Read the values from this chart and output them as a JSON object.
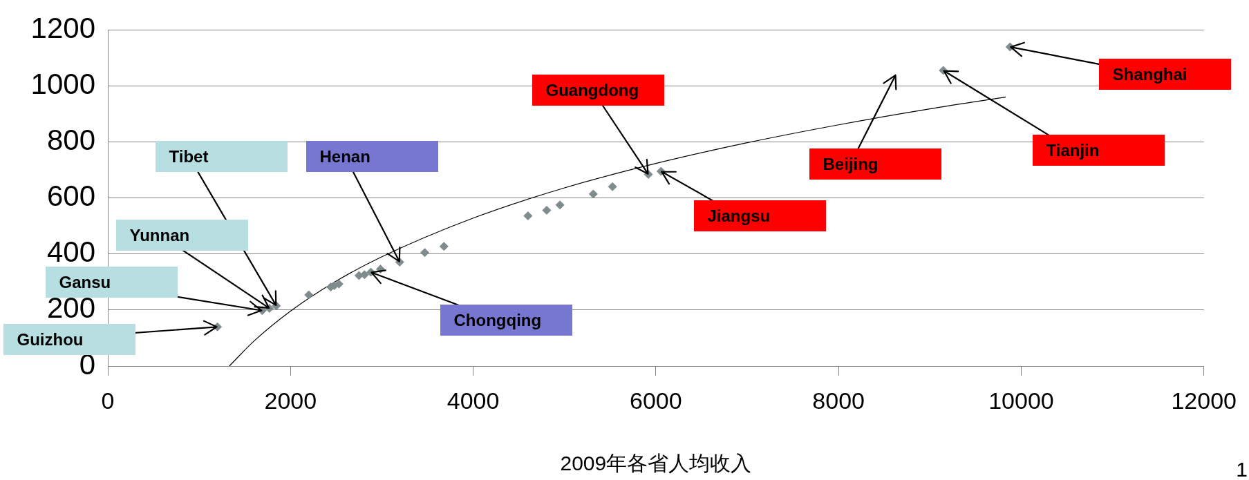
{
  "chart_data": {
    "type": "scatter",
    "xlabel": "2009年各省人均收入",
    "xlim": [
      0,
      12000
    ],
    "xticks": [
      0,
      2000,
      4000,
      6000,
      8000,
      10000,
      12000
    ],
    "ylim": [
      0,
      1200
    ],
    "yticks": [
      0,
      200,
      400,
      600,
      800,
      1000,
      1200
    ],
    "grid": "y",
    "legend": false,
    "series": [
      {
        "type": "scatter",
        "marker": "diamond",
        "color": "#7f8c8d",
        "x": [
          1200,
          1690,
          1770,
          1845,
          2200,
          2440,
          2480,
          2530,
          2750,
          2810,
          2880,
          2985,
          3195,
          3470,
          3680,
          4600,
          4805,
          4950,
          5315,
          5525,
          5918,
          6057,
          9147,
          9878
        ],
        "values": [
          140,
          198,
          206,
          215,
          254,
          282,
          287,
          293,
          323,
          326,
          335,
          346,
          371,
          405,
          427,
          536,
          556,
          575,
          614,
          640,
          684,
          695,
          1055,
          1139
        ]
      },
      {
        "type": "line",
        "color": "#000000",
        "x": [
          1330,
          1600,
          2000,
          2500,
          3000,
          4000,
          5000,
          6000,
          7000,
          8000,
          9000,
          9830
        ],
        "values": [
          0,
          89,
          196,
          303,
          390,
          528,
          636,
          723,
          797,
          861,
          918,
          960
        ]
      }
    ],
    "annotations": [
      {
        "text": "Guizhou",
        "x": 1200,
        "y": 140
      },
      {
        "text": "Gansu",
        "x": 1690,
        "y": 198
      },
      {
        "text": "Yunnan",
        "x": 1770,
        "y": 206
      },
      {
        "text": "Tibet",
        "x": 1845,
        "y": 215
      },
      {
        "text": "Henan",
        "x": 3195,
        "y": 371
      },
      {
        "text": "Chongqing",
        "x": 2880,
        "y": 335
      },
      {
        "text": "Guangdong",
        "x": 5918,
        "y": 684
      },
      {
        "text": "Jiangsu",
        "x": 6057,
        "y": 695
      },
      "Beijing",
      {
        "text": "Tianjin",
        "x": 9147,
        "y": 1055
      },
      {
        "text": "Shanghai",
        "x": 9878,
        "y": 1139
      },
      "1"
    ]
  }
}
